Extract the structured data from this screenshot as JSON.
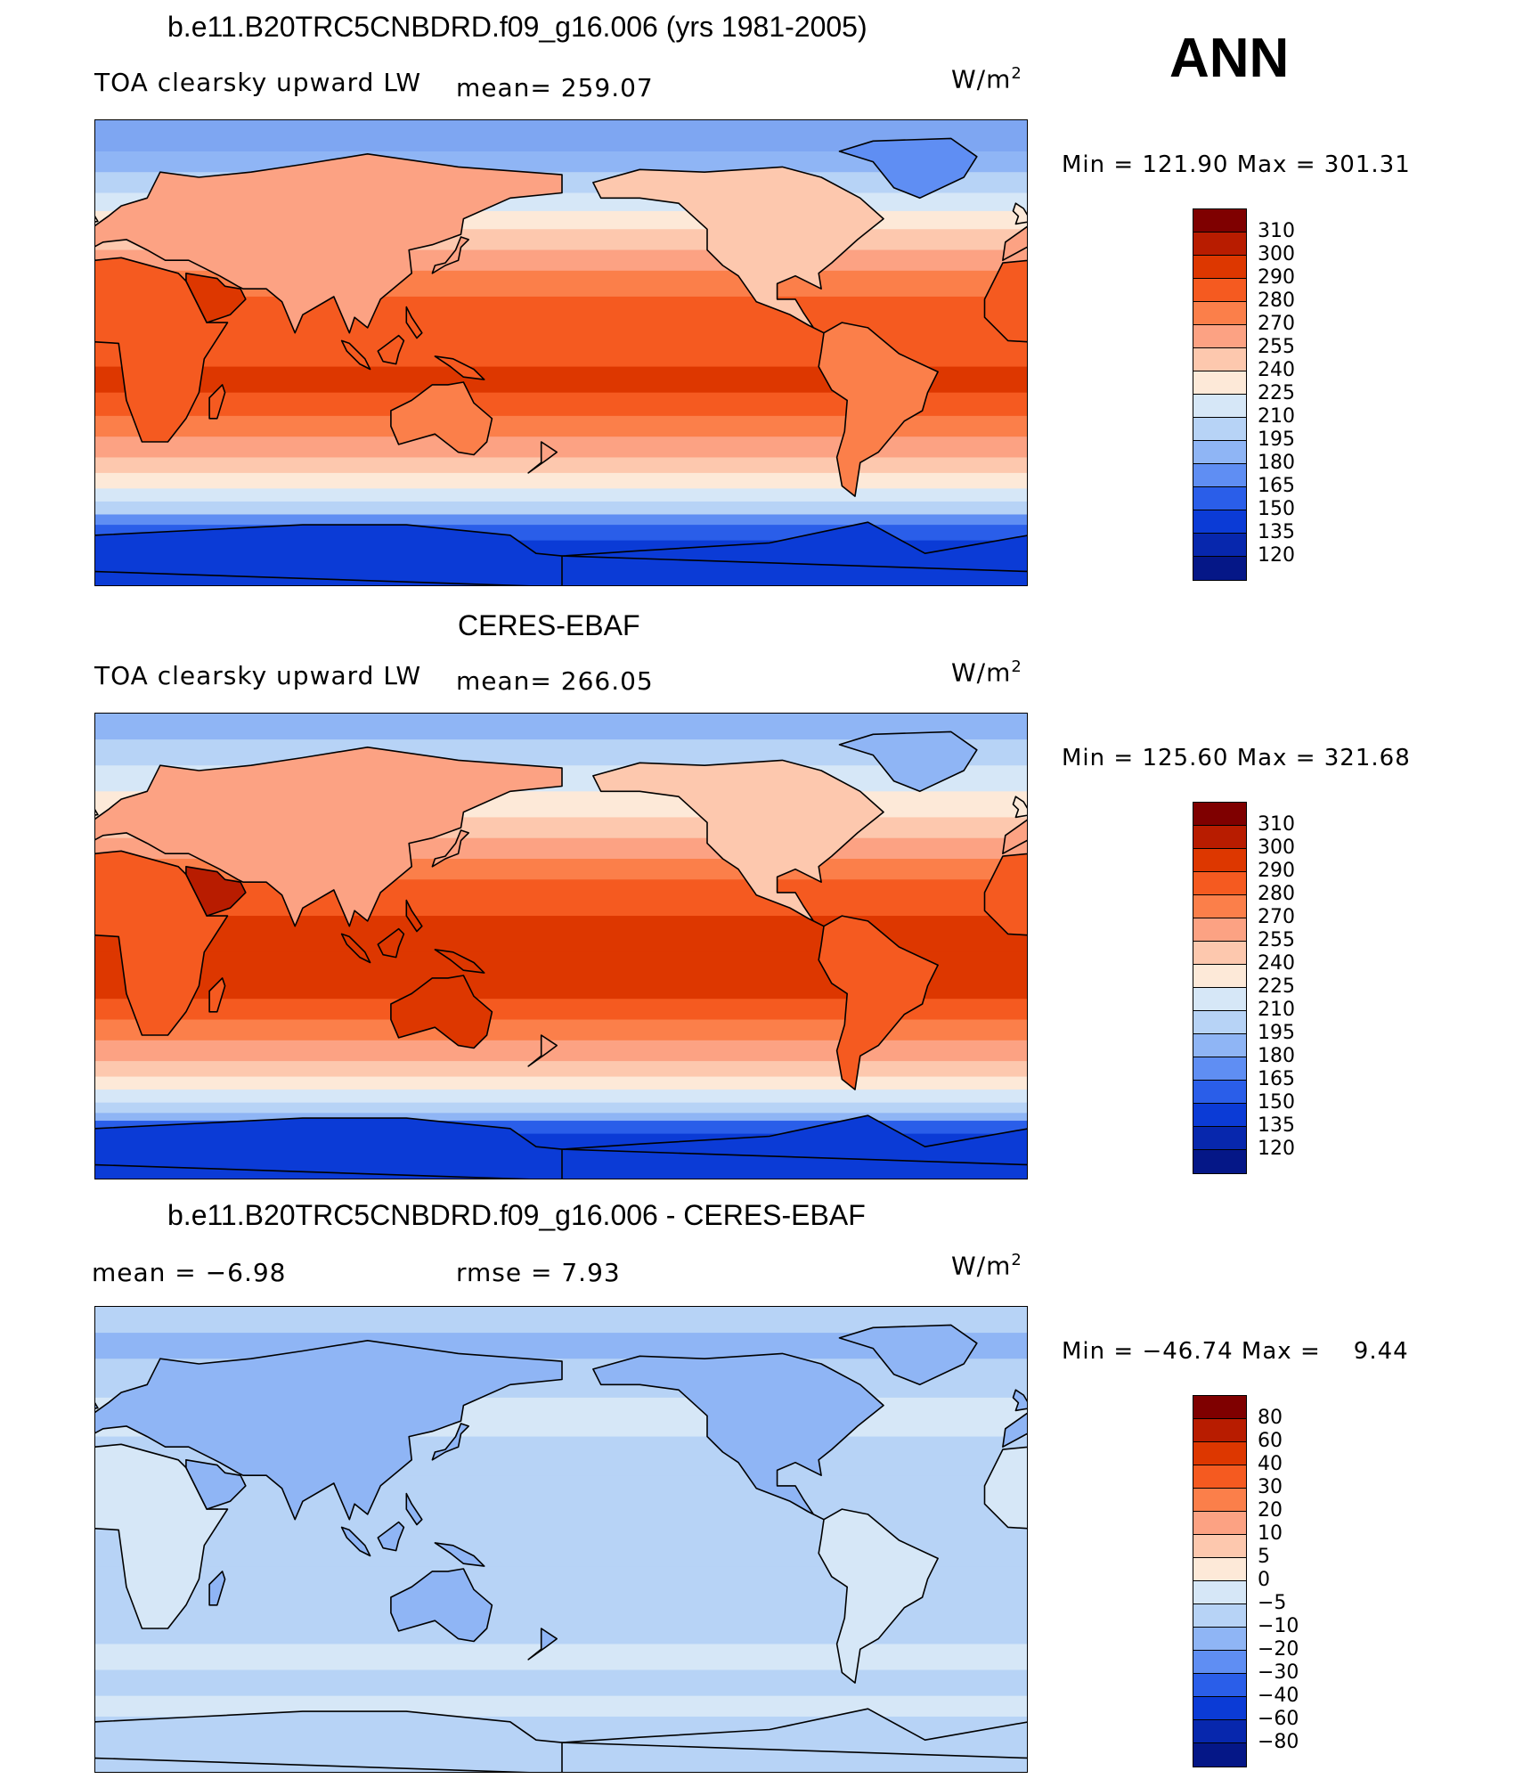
{
  "ann_label": "ANN",
  "panels": [
    {
      "title": "b.e11.B20TRC5CNBDRD.f09_g16.006 (yrs 1981-2005)",
      "left_text": "TOA clearsky upward LW",
      "mean_text": "mean= 259.07",
      "units": "W/m",
      "units_sup": "2",
      "minmax": "Min = 121.90 Max = 301.31",
      "kind": "model",
      "colorbar": {
        "labels": [
          "310",
          "300",
          "290",
          "280",
          "270",
          "255",
          "240",
          "225",
          "210",
          "195",
          "180",
          "165",
          "150",
          "135",
          "120"
        ],
        "colors": [
          "#7f0000",
          "#b81c00",
          "#dd3700",
          "#f55a20",
          "#fb7f4a",
          "#fca283",
          "#fdc8ae",
          "#fde9d8",
          "#d6e7f7",
          "#b7d3f6",
          "#8fb5f5",
          "#5f8ef3",
          "#2a5ee9",
          "#0b3bd6",
          "#0727ad",
          "#051787"
        ]
      }
    },
    {
      "title": "CERES-EBAF",
      "left_text": "TOA clearsky upward LW",
      "mean_text": "mean= 266.05",
      "units": "W/m",
      "units_sup": "2",
      "minmax": "Min = 125.60 Max = 321.68",
      "kind": "obs",
      "colorbar": {
        "labels": [
          "310",
          "300",
          "290",
          "280",
          "270",
          "255",
          "240",
          "225",
          "210",
          "195",
          "180",
          "165",
          "150",
          "135",
          "120"
        ],
        "colors": [
          "#7f0000",
          "#b81c00",
          "#dd3700",
          "#f55a20",
          "#fb7f4a",
          "#fca283",
          "#fdc8ae",
          "#fde9d8",
          "#d6e7f7",
          "#b7d3f6",
          "#8fb5f5",
          "#5f8ef3",
          "#2a5ee9",
          "#0b3bd6",
          "#0727ad",
          "#051787"
        ]
      }
    },
    {
      "title": "b.e11.B20TRC5CNBDRD.f09_g16.006 - CERES-EBAF",
      "left_text": "mean =    −6.98",
      "mean_text": "rmse =     7.93",
      "units": "W/m",
      "units_sup": "2",
      "minmax": "Min = −46.74 Max =    9.44",
      "kind": "diff",
      "colorbar": {
        "labels": [
          "80",
          "60",
          "40",
          "30",
          "20",
          "10",
          "5",
          "0",
          "−5",
          "−10",
          "−20",
          "−30",
          "−40",
          "−60",
          "−80"
        ],
        "colors": [
          "#7f0000",
          "#b81c00",
          "#dd3700",
          "#f55a20",
          "#fb7f4a",
          "#fca283",
          "#fdc8ae",
          "#fde9d8",
          "#d6e7f7",
          "#b7d3f6",
          "#8fb5f5",
          "#5f8ef3",
          "#2a5ee9",
          "#0b3bd6",
          "#0727ad",
          "#051787"
        ]
      }
    }
  ]
}
